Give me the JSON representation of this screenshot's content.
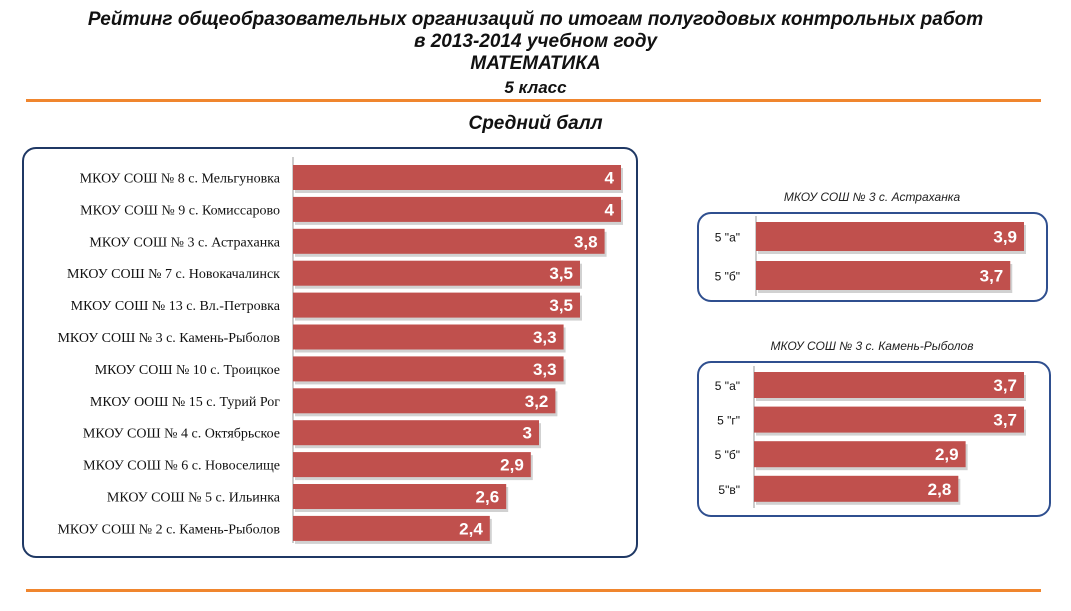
{
  "header": {
    "line1": "Рейтинг общеобразовательных  организаций по итогам полугодовых контрольных работ",
    "line2": "в 2013-2014 учебном году",
    "line3": "МАТЕМАТИКА",
    "line4": "5 класс"
  },
  "colors": {
    "bar": "#c0504d",
    "accent_rule": "#f0862e",
    "panel_border": "#1f3864"
  },
  "chart_data": [
    {
      "type": "bar",
      "orientation": "horizontal",
      "title": "Средний балл",
      "categories": [
        "МКОУ СОШ № 8 с. Мельгуновка",
        "МКОУ СОШ № 9 с. Комиссарово",
        "МКОУ СОШ № 3 с. Астраханка",
        "МКОУ СОШ № 7 с. Новокачалинск",
        "МКОУ СОШ № 13 с. Вл.-Петровка",
        "МКОУ СОШ № 3 с. Камень-Рыболов",
        "МКОУ СОШ № 10 с. Троицкое",
        "МКОУ ООШ № 15 с. Турий Рог",
        "МКОУ СОШ № 4 с. Октябрьское",
        "МКОУ СОШ № 6 с. Новоселище",
        "МКОУ СОШ № 5 с. Ильинка",
        "МКОУ СОШ № 2 с. Камень-Рыболов"
      ],
      "values": [
        4,
        4,
        3.8,
        3.5,
        3.5,
        3.3,
        3.3,
        3.2,
        3,
        2.9,
        2.6,
        2.4
      ],
      "value_labels": [
        "4",
        "4",
        "3,8",
        "3,5",
        "3,5",
        "3,3",
        "3,3",
        "3,2",
        "3",
        "2,9",
        "2,6",
        "2,4"
      ],
      "xlim": [
        0,
        4
      ]
    },
    {
      "type": "bar",
      "orientation": "horizontal",
      "title": "МКОУ СОШ № 3 с. Астраханка",
      "categories": [
        "5 \"а\"",
        "5 \"б\""
      ],
      "values": [
        3.9,
        3.7
      ],
      "value_labels": [
        "3,9",
        "3,7"
      ],
      "xlim": [
        0,
        3.9
      ]
    },
    {
      "type": "bar",
      "orientation": "horizontal",
      "title": "МКОУ СОШ № 3 с. Камень-Рыболов",
      "categories": [
        "5 \"а\"",
        "5 \"г\"",
        "5 \"б\"",
        "5\"в\""
      ],
      "values": [
        3.7,
        3.7,
        2.9,
        2.8
      ],
      "value_labels": [
        "3,7",
        "3,7",
        "2,9",
        "2,8"
      ],
      "xlim": [
        0,
        3.7
      ]
    }
  ]
}
